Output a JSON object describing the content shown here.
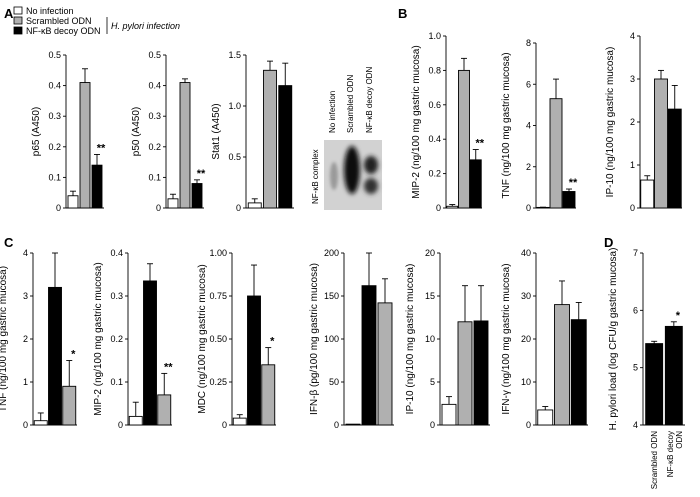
{
  "colors": {
    "white": "#ffffff",
    "gray": "#b0b0b0",
    "black": "#000000",
    "axis": "#000000"
  },
  "legend": {
    "items": [
      {
        "label": "No infection",
        "color": "white"
      },
      {
        "label": "Scrambled ODN",
        "color": "gray"
      },
      {
        "label": "NF-κB decoy ODN",
        "color": "black"
      }
    ],
    "bracket_label": "H. pylori infection"
  },
  "blot": {
    "lane_labels": [
      "No infection",
      "Scrambled ODN",
      "NF-κB decoy ODN"
    ],
    "row_label": "NF-κB complex"
  },
  "chart_data": [
    {
      "id": "A1",
      "panel": "A",
      "type": "bar",
      "ylabel": "p65 (A450)",
      "ylim": [
        0,
        0.5
      ],
      "yticks": [
        "0",
        "0.1",
        "0.2",
        "0.3",
        "0.4",
        "0.5"
      ],
      "values": [
        0.04,
        0.41,
        0.14
      ],
      "errors": [
        0.015,
        0.045,
        0.035
      ],
      "colors": [
        "white",
        "gray",
        "black"
      ],
      "stars": [
        "",
        "",
        "**"
      ]
    },
    {
      "id": "A2",
      "panel": "",
      "type": "bar",
      "ylabel": "p50 (A450)",
      "ylim": [
        0,
        0.5
      ],
      "yticks": [
        "0",
        "0.1",
        "0.2",
        "0.3",
        "0.4",
        "0.5"
      ],
      "values": [
        0.03,
        0.41,
        0.08
      ],
      "errors": [
        0.015,
        0.012,
        0.012
      ],
      "colors": [
        "white",
        "gray",
        "black"
      ],
      "stars": [
        "",
        "",
        "**"
      ]
    },
    {
      "id": "A3",
      "panel": "",
      "type": "bar",
      "ylabel": "Stat1 (A450)",
      "ylim": [
        0,
        1.5
      ],
      "yticks": [
        "0",
        "0.5",
        "1.0",
        "1.5"
      ],
      "values": [
        0.05,
        1.35,
        1.2
      ],
      "errors": [
        0.04,
        0.09,
        0.22
      ],
      "colors": [
        "white",
        "gray",
        "black"
      ],
      "stars": [
        "",
        "",
        ""
      ]
    },
    {
      "id": "B1",
      "panel": "B",
      "type": "bar",
      "ylabel": "MIP-2 (ng/100 mg gastric mucosa)",
      "ylim": [
        0,
        1.0
      ],
      "yticks": [
        "0",
        "0.2",
        "0.4",
        "0.6",
        "0.8",
        "1.0"
      ],
      "values": [
        0.01,
        0.8,
        0.28
      ],
      "errors": [
        0.01,
        0.07,
        0.06
      ],
      "colors": [
        "white",
        "gray",
        "black"
      ],
      "stars": [
        "",
        "",
        "**"
      ]
    },
    {
      "id": "B2",
      "panel": "",
      "type": "bar",
      "ylabel": "TNF (ng/100 mg gastric mucosa)",
      "ylim": [
        0,
        8
      ],
      "yticks": [
        "0",
        "2",
        "4",
        "6",
        "8"
      ],
      "values": [
        0.02,
        5.3,
        0.8
      ],
      "errors": [
        0.02,
        0.95,
        0.12
      ],
      "colors": [
        "white",
        "gray",
        "black"
      ],
      "stars": [
        "",
        "",
        "**"
      ]
    },
    {
      "id": "B3",
      "panel": "",
      "type": "bar",
      "ylabel": "IP-10 (ng/100 mg gastric mucosa)",
      "ylim": [
        0,
        4
      ],
      "yticks": [
        "0",
        "1",
        "2",
        "3",
        "4"
      ],
      "values": [
        0.65,
        3.0,
        2.3
      ],
      "errors": [
        0.1,
        0.2,
        0.55
      ],
      "colors": [
        "white",
        "gray",
        "black"
      ],
      "stars": [
        "",
        "",
        ""
      ]
    },
    {
      "id": "C1",
      "panel": "C",
      "type": "bar",
      "ylabel": "TNF (ng/100 mg gastric mucosa)",
      "ylim": [
        0,
        4
      ],
      "yticks": [
        "0",
        "1",
        "2",
        "3",
        "4"
      ],
      "values": [
        0.1,
        3.2,
        0.9
      ],
      "errors": [
        0.18,
        0.8,
        0.6
      ],
      "colors": [
        "white",
        "black",
        "gray"
      ],
      "stars": [
        "",
        "",
        "*"
      ]
    },
    {
      "id": "C2",
      "panel": "",
      "type": "bar",
      "ylabel": "MIP-2 (ng/100 mg gastric mucosa)",
      "ylim": [
        0,
        0.4
      ],
      "yticks": [
        "0",
        "0.1",
        "0.2",
        "0.3",
        "0.4"
      ],
      "values": [
        0.02,
        0.335,
        0.07
      ],
      "errors": [
        0.033,
        0.04,
        0.05
      ],
      "colors": [
        "white",
        "black",
        "gray"
      ],
      "stars": [
        "",
        "",
        "**"
      ]
    },
    {
      "id": "C3",
      "panel": "",
      "type": "bar",
      "ylabel": "MDC (ng/100 mg gastric mucosa)",
      "ylim": [
        0,
        1.0
      ],
      "yticks": [
        "0",
        "0.25",
        "0.50",
        "0.75",
        "1.00"
      ],
      "values": [
        0.04,
        0.75,
        0.35
      ],
      "errors": [
        0.02,
        0.18,
        0.1
      ],
      "colors": [
        "white",
        "black",
        "gray"
      ],
      "stars": [
        "",
        "",
        "*"
      ]
    },
    {
      "id": "C4",
      "panel": "",
      "type": "bar",
      "ylabel": "IFN-β (pg/100 mg gastric mucosa)",
      "ylim": [
        0,
        200
      ],
      "yticks": [
        "0",
        "50",
        "100",
        "150",
        "200"
      ],
      "values": [
        1,
        162,
        142
      ],
      "errors": [
        0,
        38,
        28
      ],
      "colors": [
        "white",
        "black",
        "gray"
      ],
      "stars": [
        "",
        "",
        ""
      ]
    },
    {
      "id": "C5",
      "panel": "",
      "type": "bar",
      "ylabel": "IP-10 (ng/100 mg gastric mucosa)",
      "ylim": [
        0,
        20
      ],
      "yticks": [
        "0",
        "5",
        "10",
        "15",
        "20"
      ],
      "values": [
        2.4,
        12,
        12.1
      ],
      "errors": [
        0.9,
        4.2,
        4.1
      ],
      "colors": [
        "white",
        "gray",
        "black"
      ],
      "stars": [
        "",
        "",
        ""
      ]
    },
    {
      "id": "C6",
      "panel": "",
      "type": "bar",
      "ylabel": "IFN-γ (ng/100 mg gastric mucosa)",
      "ylim": [
        0,
        40
      ],
      "yticks": [
        "0",
        "10",
        "20",
        "30",
        "40"
      ],
      "values": [
        3.5,
        28,
        24.5
      ],
      "errors": [
        0.8,
        5.5,
        4
      ],
      "colors": [
        "white",
        "gray",
        "black"
      ],
      "stars": [
        "",
        "",
        ""
      ]
    },
    {
      "id": "D1",
      "panel": "D",
      "type": "bar",
      "ylabel": "H. pylori load (log CFU/g gastric mucosa)",
      "ylim": [
        4,
        7
      ],
      "yticks": [
        "4",
        "5",
        "6",
        "7"
      ],
      "categories": [
        "Scrambled ODN",
        "NF-κB decoy ODN"
      ],
      "values": [
        5.42,
        5.72
      ],
      "errors": [
        0.04,
        0.08
      ],
      "colors": [
        "black",
        "black"
      ],
      "stars": [
        "",
        "*"
      ]
    }
  ]
}
